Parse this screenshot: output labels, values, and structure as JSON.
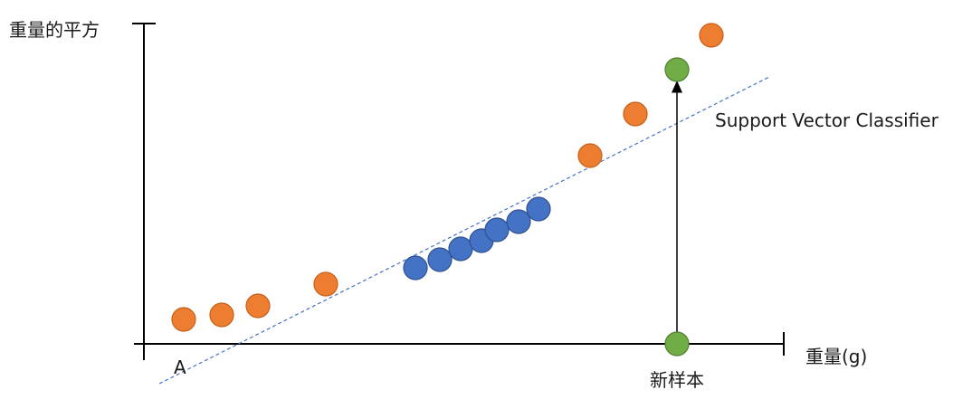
{
  "labels": {
    "y_axis": "重量的平方",
    "x_axis": "重量(g)",
    "origin": "A",
    "new_sample": "新样本",
    "classifier": "Support Vector Classifier"
  },
  "colors": {
    "class_orange": "#ED7D31",
    "class_blue": "#4472C4",
    "new_sample_green": "#70AD47",
    "classifier_line": "#4472C4",
    "axis": "#000000"
  },
  "legend": [
    {
      "class": "orange",
      "color": "#ED7D31"
    },
    {
      "class": "blue",
      "color": "#4472C4"
    },
    {
      "class": "new-sample",
      "color": "#70AD47"
    }
  ]
}
